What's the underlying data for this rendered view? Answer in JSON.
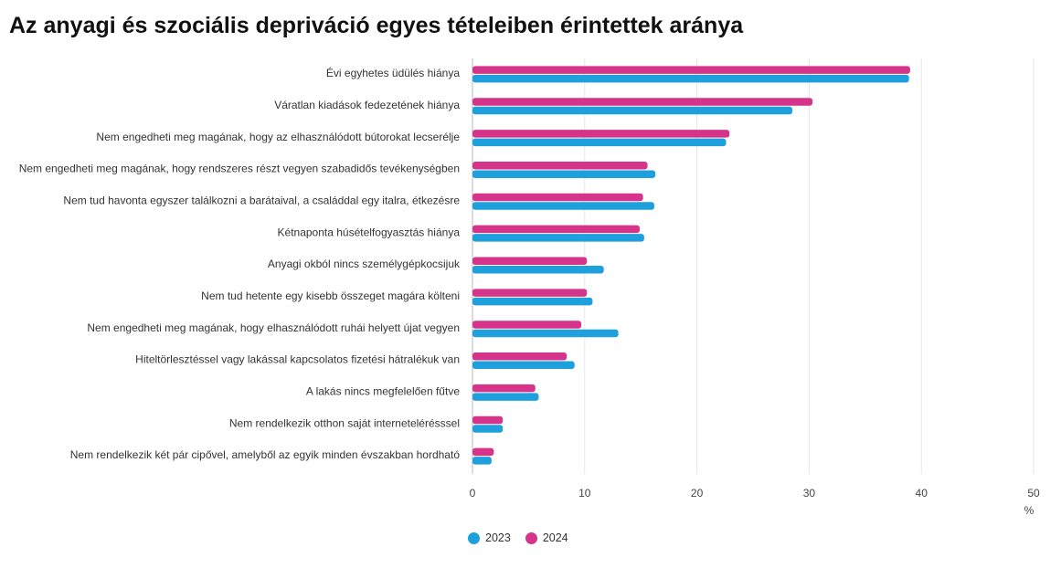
{
  "chart_data": {
    "type": "bar",
    "orientation": "horizontal",
    "title": "Az anyagi és szociális depriváció egyes tételeiben érintettek aránya",
    "categories": [
      "Évi egyhetes üdülés hiánya",
      "Váratlan kiadások fedezetének hiánya",
      "Nem engedheti meg magának, hogy az elhasználódott bútorokat lecserélje",
      "Nem engedheti meg magának, hogy rendszeres részt vegyen szabadidős tevékenységben",
      "Nem tud havonta egyszer találkozni a barátaival, a családdal egy italra, étkezésre",
      "Kétnaponta húsételfogyasztás hiánya",
      "Anyagi okból nincs személygépkocsijuk",
      "Nem tud hetente egy kisebb összeget magára költeni",
      "Nem engedheti meg magának, hogy elhasználódott ruhái helyett újat vegyen",
      "Hiteltörlesztéssel vagy lakással kapcsolatos fizetési hátralékuk van",
      "A lakás nincs megfelelően fűtve",
      "Nem rendelkezik otthon saját internetelérésssel",
      "Nem rendelkezik két pár cipővel, amelyből az egyik minden évszakban hordható"
    ],
    "series": [
      {
        "name": "2024",
        "color": "#d6338a",
        "values": [
          39.0,
          30.3,
          22.9,
          15.6,
          15.2,
          14.9,
          10.2,
          10.2,
          9.7,
          8.4,
          5.6,
          2.7,
          1.9
        ]
      },
      {
        "name": "2023",
        "color": "#1ea0dc",
        "values": [
          38.9,
          28.5,
          22.6,
          16.3,
          16.2,
          15.3,
          11.7,
          10.7,
          13.0,
          9.1,
          5.9,
          2.7,
          1.7
        ]
      }
    ],
    "xlim": [
      0,
      50
    ],
    "xticks": [
      0,
      10,
      20,
      30,
      40,
      50
    ],
    "xticklabels": [
      "0",
      "10",
      "20",
      "30",
      "40",
      "50"
    ],
    "xlabel": "%",
    "grid": true,
    "legend": [
      "2023",
      "2024"
    ],
    "legend_position": "bottom-left"
  }
}
